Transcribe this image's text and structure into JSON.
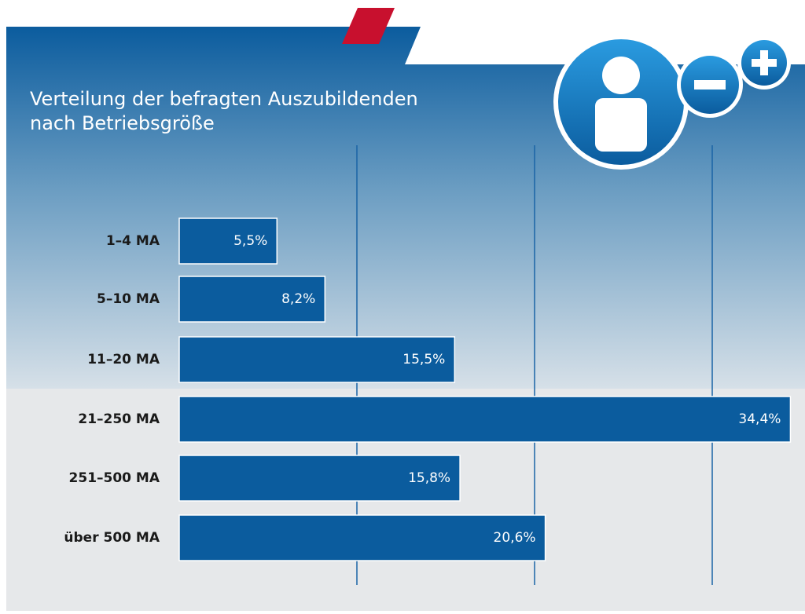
{
  "chart_data": {
    "type": "hbar",
    "title": "Verteilung der befragten Auszubildenden",
    "subtitle": "nach Betriebsgröße",
    "categories": [
      "1–4 MA",
      "5–10 MA",
      "11–20 MA",
      "21–250 MA",
      "251–500 MA",
      "über 500 MA"
    ],
    "values": [
      5.5,
      8.2,
      15.5,
      34.4,
      15.8,
      20.6
    ],
    "value_labels": [
      "5,5%",
      "8,2%",
      "15,5%",
      "34,4%",
      "15,8%",
      "20,6%"
    ],
    "color": "#0b5c9e",
    "xlim": [
      0,
      35
    ],
    "xgrid": [
      10,
      20,
      30
    ]
  }
}
